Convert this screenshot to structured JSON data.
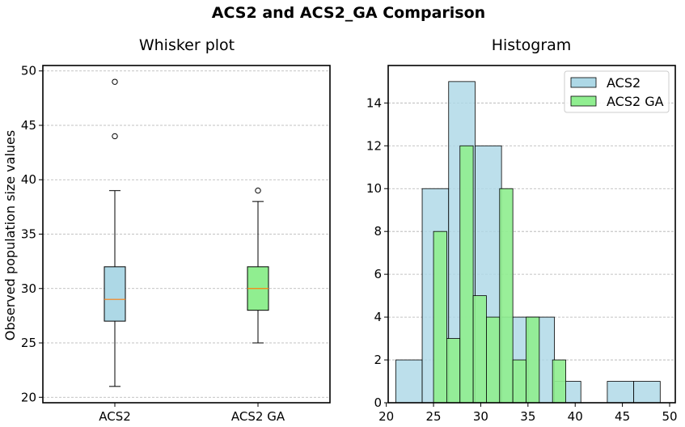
{
  "suptitle": "ACS2 and ACS2_GA Comparison",
  "chart_data": [
    {
      "type": "box",
      "title": "Whisker plot",
      "xlabel": "",
      "ylabel": "Observed population size values",
      "ylim": [
        19.5,
        50.5
      ],
      "yticks": [
        20,
        25,
        30,
        35,
        40,
        45,
        50
      ],
      "grid": "y-dashed",
      "categories": [
        "ACS2",
        "ACS2 GA"
      ],
      "boxes": [
        {
          "name": "ACS2",
          "whislo": 21,
          "q1": 27,
          "med": 29,
          "q3": 32,
          "whishi": 39,
          "fliers": [
            44,
            49
          ],
          "color": "#add8e6"
        },
        {
          "name": "ACS2 GA",
          "whislo": 25,
          "q1": 28,
          "med": 30,
          "q3": 32,
          "whishi": 38,
          "fliers": [
            39
          ],
          "color": "#90ee90"
        }
      ]
    },
    {
      "type": "histogram",
      "title": "Histogram",
      "xlabel": "",
      "ylabel": "",
      "xlim": [
        20.2,
        50.6
      ],
      "ylim": [
        0,
        15.75
      ],
      "xticks": [
        20,
        25,
        30,
        35,
        40,
        45,
        50
      ],
      "yticks": [
        0,
        2,
        4,
        6,
        8,
        10,
        12,
        14
      ],
      "grid": "y-dashed",
      "legend_position": "top-right",
      "series": [
        {
          "name": "ACS2",
          "color": "#add8e6",
          "bins": [
            {
              "x0": 21.0,
              "x1": 23.8,
              "count": 2
            },
            {
              "x0": 23.8,
              "x1": 26.6,
              "count": 10
            },
            {
              "x0": 26.6,
              "x1": 29.4,
              "count": 15
            },
            {
              "x0": 29.4,
              "x1": 32.2,
              "count": 12
            },
            {
              "x0": 32.2,
              "x1": 35.0,
              "count": 4
            },
            {
              "x0": 35.0,
              "x1": 37.8,
              "count": 4
            },
            {
              "x0": 37.8,
              "x1": 40.6,
              "count": 1
            },
            {
              "x0": 40.6,
              "x1": 43.4,
              "count": 0
            },
            {
              "x0": 43.4,
              "x1": 46.2,
              "count": 1
            },
            {
              "x0": 46.2,
              "x1": 49.0,
              "count": 1
            }
          ]
        },
        {
          "name": "ACS2 GA",
          "color": "#90ee90",
          "bins": [
            {
              "x0": 25.0,
              "x1": 26.4,
              "count": 8
            },
            {
              "x0": 26.4,
              "x1": 27.8,
              "count": 3
            },
            {
              "x0": 27.8,
              "x1": 29.2,
              "count": 12
            },
            {
              "x0": 29.2,
              "x1": 30.6,
              "count": 5
            },
            {
              "x0": 30.6,
              "x1": 32.0,
              "count": 4
            },
            {
              "x0": 32.0,
              "x1": 33.4,
              "count": 10
            },
            {
              "x0": 33.4,
              "x1": 34.8,
              "count": 2
            },
            {
              "x0": 34.8,
              "x1": 36.2,
              "count": 4
            },
            {
              "x0": 36.2,
              "x1": 37.6,
              "count": 0
            },
            {
              "x0": 37.6,
              "x1": 39.0,
              "count": 2
            }
          ]
        }
      ]
    }
  ]
}
